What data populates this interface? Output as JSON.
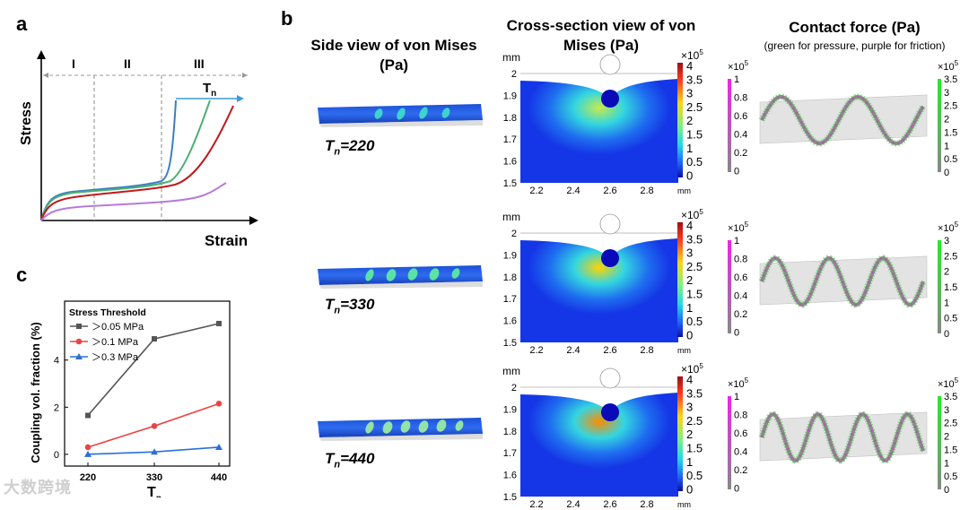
{
  "figure": {
    "panel_a": {
      "letter": "a",
      "ylabel": "Stress",
      "xlabel": "Strain",
      "regions": [
        "I",
        "II",
        "III"
      ],
      "arrow_label_main": "T",
      "arrow_label_sub": "n",
      "curve_colors": [
        "#3b7fc4",
        "#4caf73",
        "#c0181c",
        "#b57bd8"
      ]
    },
    "panel_b": {
      "letter": "b",
      "col1_title": "Side view of von Mises (Pa)",
      "col2_title": "Cross-section view of von Mises (Pa)",
      "col3_title": "Contact force (Pa)",
      "col3_subtitle": "(green for pressure, purple for friction)",
      "rows": [
        {
          "label_main": "T",
          "label_sub": "n",
          "label_value": "=220"
        },
        {
          "label_main": "T",
          "label_sub": "n",
          "label_value": "=330"
        },
        {
          "label_main": "T",
          "label_sub": "n",
          "label_value": "=440"
        }
      ],
      "cross_section": {
        "unit": "mm",
        "y_ticks": [
          "2",
          "1.9",
          "1.8",
          "1.7",
          "1.6",
          "1.5"
        ],
        "x_ticks": [
          "2.2",
          "2.4",
          "2.6",
          "2.8"
        ],
        "x_unit": "mm",
        "colorbar_exponent": "×10",
        "colorbar_exp_power": "5",
        "colorbar_ticks_row1": [
          "4",
          "3.5",
          "3",
          "2.5",
          "2",
          "1.5",
          "1",
          "0.5",
          "0"
        ],
        "colorbar_ticks_row2": [
          "4",
          "3.5",
          "3",
          "2.5",
          "2",
          "1.5",
          "1",
          "0.5",
          "0"
        ],
        "colorbar_ticks_row3": [
          "4",
          "3.5",
          "3",
          "2.5",
          "2",
          "1.5",
          "1",
          "0.5",
          "0"
        ]
      },
      "contact": {
        "friction_exponent": "×10",
        "friction_exp_power": "5",
        "friction_ticks": [
          "1",
          "0.8",
          "0.6",
          "0.4",
          "0.2",
          "0"
        ],
        "pressure_exponent": "×10",
        "pressure_exp_power": "5",
        "pressure_ticks_row1": [
          "3.5",
          "3",
          "2.5",
          "2",
          "1.5",
          "1",
          "0.5",
          "0"
        ],
        "pressure_ticks_row2": [
          "3",
          "2.5",
          "2",
          "1.5",
          "1",
          "0.5",
          "0"
        ],
        "pressure_ticks_row3": [
          "3.5",
          "3",
          "2.5",
          "2",
          "1.5",
          "1",
          "0.5",
          "0"
        ],
        "pressure_color": "#33cc33",
        "friction_color": "#cc33cc"
      }
    },
    "panel_c": {
      "letter": "c",
      "ylabel": "Coupling vol. fraction (%)",
      "xlabel_main": "T",
      "xlabel_sub": "n",
      "legend_title": "Stress Threshold"
    },
    "watermark": "大数跨境"
  },
  "chart_data": {
    "type": "line",
    "title": "",
    "xlabel": "Tn",
    "ylabel": "Coupling vol. fraction (%)",
    "categories": [
      "220",
      "330",
      "440"
    ],
    "x": [
      220,
      330,
      440
    ],
    "ylim": [
      -0.5,
      6.5
    ],
    "yticks": [
      0,
      2,
      4
    ],
    "series": [
      {
        "name": "＞0.05 MPa",
        "color": "#555555",
        "marker": "square",
        "values": [
          1.65,
          4.9,
          5.55
        ]
      },
      {
        "name": "＞0.1 MPa",
        "color": "#e84646",
        "marker": "circle",
        "values": [
          0.3,
          1.2,
          2.15
        ]
      },
      {
        "name": "＞0.3 MPa",
        "color": "#2b6fd6",
        "marker": "triangle",
        "values": [
          0.0,
          0.1,
          0.3
        ]
      }
    ]
  }
}
